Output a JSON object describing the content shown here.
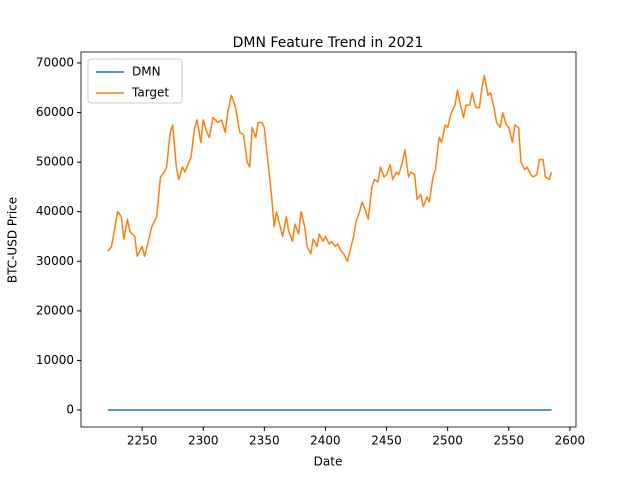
{
  "chart_data": {
    "type": "line",
    "title": "DMN Feature Trend in 2021",
    "x_label": "Date",
    "y_label": "BTC-USD Price",
    "x": [
      2222,
      2225,
      2230,
      2233,
      2235,
      2238,
      2240,
      2244,
      2246,
      2250,
      2252,
      2255,
      2258,
      2260,
      2262,
      2265,
      2268,
      2270,
      2273,
      2275,
      2278,
      2280,
      2283,
      2285,
      2290,
      2293,
      2295,
      2298,
      2300,
      2303,
      2305,
      2308,
      2312,
      2315,
      2318,
      2320,
      2323,
      2326,
      2330,
      2333,
      2336,
      2338,
      2340,
      2343,
      2345,
      2348,
      2350,
      2353,
      2356,
      2358,
      2360,
      2363,
      2365,
      2368,
      2370,
      2373,
      2375,
      2378,
      2380,
      2383,
      2385,
      2388,
      2390,
      2393,
      2395,
      2398,
      2400,
      2403,
      2405,
      2408,
      2410,
      2413,
      2415,
      2418,
      2420,
      2423,
      2425,
      2428,
      2430,
      2433,
      2435,
      2438,
      2440,
      2443,
      2445,
      2448,
      2450,
      2453,
      2455,
      2458,
      2460,
      2463,
      2465,
      2468,
      2470,
      2473,
      2475,
      2478,
      2480,
      2483,
      2485,
      2488,
      2490,
      2493,
      2495,
      2498,
      2500,
      2503,
      2506,
      2508,
      2510,
      2513,
      2515,
      2518,
      2520,
      2523,
      2526,
      2528,
      2530,
      2533,
      2535,
      2538,
      2540,
      2543,
      2545,
      2548,
      2550,
      2553,
      2555,
      2558,
      2560,
      2563,
      2565,
      2568,
      2570,
      2573,
      2575,
      2578,
      2580,
      2583,
      2585
    ],
    "series": [
      {
        "name": "DMN",
        "color": "#1f77b4",
        "values": [
          0,
          0,
          0,
          0,
          0,
          0,
          0,
          0,
          0,
          0,
          0,
          0,
          0,
          0,
          0,
          0,
          0,
          0,
          0,
          0,
          0,
          0,
          0,
          0,
          0,
          0,
          0,
          0,
          0,
          0,
          0,
          0,
          0,
          0,
          0,
          0,
          0,
          0,
          0,
          0,
          0,
          0,
          0,
          0,
          0,
          0,
          0,
          0,
          0,
          0,
          0,
          0,
          0,
          0,
          0,
          0,
          0,
          0,
          0,
          0,
          0,
          0,
          0,
          0,
          0,
          0,
          0,
          0,
          0,
          0,
          0,
          0,
          0,
          0,
          0,
          0,
          0,
          0,
          0,
          0,
          0,
          0,
          0,
          0,
          0,
          0,
          0,
          0,
          0,
          0,
          0,
          0,
          0,
          0,
          0,
          0,
          0,
          0,
          0,
          0,
          0,
          0,
          0,
          0,
          0,
          0,
          0,
          0,
          0,
          0,
          0,
          0,
          0,
          0,
          0,
          0,
          0,
          0,
          0,
          0,
          0,
          0,
          0,
          0,
          0,
          0,
          0,
          0,
          0,
          0,
          0,
          0,
          0,
          0,
          0,
          0,
          0,
          0,
          0,
          0,
          0
        ]
      },
      {
        "name": "Target",
        "color": "#ff7f0e",
        "values": [
          32000,
          33000,
          40000,
          39000,
          34500,
          38500,
          36000,
          35000,
          31000,
          33000,
          31000,
          34000,
          37000,
          38000,
          39000,
          47000,
          48000,
          49000,
          56000,
          57500,
          49000,
          46500,
          49000,
          48000,
          51000,
          57000,
          58500,
          54000,
          58500,
          56000,
          55000,
          59000,
          58000,
          58500,
          56000,
          60000,
          63500,
          61500,
          56000,
          55500,
          50000,
          49000,
          57000,
          55000,
          58000,
          58000,
          57000,
          50000,
          43000,
          37000,
          40000,
          37000,
          35000,
          39000,
          36000,
          34000,
          37500,
          35500,
          40000,
          37000,
          33000,
          31500,
          34500,
          33000,
          35500,
          34000,
          35000,
          33500,
          34000,
          33000,
          33500,
          32000,
          31500,
          30000,
          32000,
          35000,
          38000,
          40000,
          42000,
          40000,
          38500,
          45000,
          46500,
          46000,
          49000,
          47000,
          47500,
          49500,
          46500,
          48000,
          47500,
          50000,
          52500,
          47000,
          48000,
          47500,
          42500,
          43500,
          41000,
          43000,
          42000,
          47000,
          48500,
          55000,
          54000,
          57500,
          57000,
          60000,
          61500,
          64500,
          62000,
          59000,
          61500,
          61500,
          64000,
          61000,
          61000,
          65000,
          67500,
          63500,
          64000,
          61000,
          58000,
          57000,
          60000,
          57500,
          57000,
          54000,
          57500,
          57000,
          50000,
          48500,
          49000,
          47500,
          47000,
          47500,
          50500,
          50500,
          47000,
          46500,
          48000
        ]
      }
    ],
    "xlim": [
      2200,
      2605
    ],
    "ylim": [
      -3430,
      72220
    ],
    "xticks": [
      2250,
      2300,
      2350,
      2400,
      2450,
      2500,
      2550,
      2600
    ],
    "yticks": [
      0,
      10000,
      20000,
      30000,
      40000,
      50000,
      60000,
      70000
    ],
    "legend": "upper left"
  }
}
